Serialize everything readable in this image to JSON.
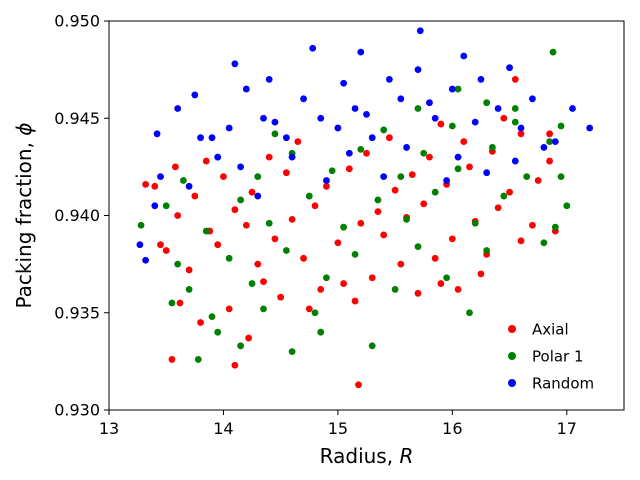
{
  "chart_data": {
    "type": "scatter",
    "title": "",
    "xlabel": "Radius, ",
    "xlabel_symbol": "R",
    "ylabel": "Packing fraction, ",
    "ylabel_symbol": "ϕ",
    "xlim": [
      13.0,
      17.5
    ],
    "ylim": [
      0.93,
      0.95
    ],
    "xticks": [
      13,
      14,
      15,
      16,
      17
    ],
    "xtick_labels": [
      "13",
      "14",
      "15",
      "16",
      "17"
    ],
    "yticks": [
      0.93,
      0.935,
      0.94,
      0.945,
      0.95
    ],
    "ytick_labels": [
      "0.930",
      "0.935",
      "0.940",
      "0.945",
      "0.950"
    ],
    "grid": false,
    "legend_position": "lower-right",
    "series": [
      {
        "name": "Axial",
        "color": "#ff0000",
        "points": [
          [
            15.18,
            0.9313
          ],
          [
            14.1,
            0.9323
          ],
          [
            13.55,
            0.9326
          ],
          [
            14.22,
            0.9337
          ],
          [
            13.8,
            0.9345
          ],
          [
            14.05,
            0.9352
          ],
          [
            13.62,
            0.9355
          ],
          [
            14.5,
            0.9358
          ],
          [
            14.85,
            0.9362
          ],
          [
            15.05,
            0.9365
          ],
          [
            15.3,
            0.9368
          ],
          [
            15.9,
            0.9365
          ],
          [
            16.05,
            0.9362
          ],
          [
            13.7,
            0.9372
          ],
          [
            14.3,
            0.9375
          ],
          [
            14.7,
            0.9378
          ],
          [
            15.55,
            0.9375
          ],
          [
            15.85,
            0.9378
          ],
          [
            16.3,
            0.938
          ],
          [
            13.5,
            0.9382
          ],
          [
            13.95,
            0.9385
          ],
          [
            14.45,
            0.9388
          ],
          [
            15.0,
            0.9386
          ],
          [
            15.4,
            0.939
          ],
          [
            16.0,
            0.9388
          ],
          [
            16.6,
            0.9387
          ],
          [
            13.45,
            0.9385
          ],
          [
            13.88,
            0.9392
          ],
          [
            14.2,
            0.9395
          ],
          [
            14.6,
            0.9398
          ],
          [
            15.2,
            0.9396
          ],
          [
            15.6,
            0.9399
          ],
          [
            16.2,
            0.9397
          ],
          [
            16.7,
            0.9395
          ],
          [
            13.6,
            0.94
          ],
          [
            14.1,
            0.9403
          ],
          [
            14.8,
            0.9405
          ],
          [
            15.35,
            0.9402
          ],
          [
            15.75,
            0.9406
          ],
          [
            16.4,
            0.9404
          ],
          [
            16.9,
            0.9392
          ],
          [
            13.75,
            0.941
          ],
          [
            14.25,
            0.9412
          ],
          [
            14.9,
            0.9415
          ],
          [
            15.5,
            0.9413
          ],
          [
            15.95,
            0.9416
          ],
          [
            16.5,
            0.9412
          ],
          [
            13.4,
            0.9415
          ],
          [
            14.0,
            0.942
          ],
          [
            14.55,
            0.9422
          ],
          [
            15.1,
            0.9424
          ],
          [
            15.65,
            0.9421
          ],
          [
            16.15,
            0.9425
          ],
          [
            16.75,
            0.9418
          ],
          [
            13.85,
            0.9428
          ],
          [
            14.4,
            0.943
          ],
          [
            15.25,
            0.9432
          ],
          [
            15.8,
            0.943
          ],
          [
            16.35,
            0.9433
          ],
          [
            16.85,
            0.9428
          ],
          [
            14.65,
            0.9438
          ],
          [
            15.45,
            0.944
          ],
          [
            16.1,
            0.9438
          ],
          [
            16.6,
            0.9442
          ],
          [
            15.0,
            0.9445
          ],
          [
            15.9,
            0.9447
          ],
          [
            16.45,
            0.945
          ],
          [
            16.85,
            0.9442
          ],
          [
            16.55,
            0.947
          ],
          [
            13.58,
            0.9425
          ],
          [
            13.32,
            0.9416
          ],
          [
            14.75,
            0.9352
          ],
          [
            15.15,
            0.9356
          ],
          [
            15.7,
            0.936
          ],
          [
            16.25,
            0.937
          ],
          [
            14.35,
            0.9366
          ]
        ]
      },
      {
        "name": "Polar 1",
        "color": "#008000",
        "points": [
          [
            13.78,
            0.9326
          ],
          [
            14.15,
            0.9333
          ],
          [
            15.3,
            0.9333
          ],
          [
            14.6,
            0.933
          ],
          [
            13.55,
            0.9355
          ],
          [
            13.9,
            0.9348
          ],
          [
            14.35,
            0.9352
          ],
          [
            14.8,
            0.935
          ],
          [
            16.15,
            0.935
          ],
          [
            13.7,
            0.9362
          ],
          [
            14.25,
            0.9365
          ],
          [
            14.9,
            0.9368
          ],
          [
            15.5,
            0.9362
          ],
          [
            15.95,
            0.9368
          ],
          [
            13.6,
            0.9375
          ],
          [
            14.05,
            0.9378
          ],
          [
            14.55,
            0.9382
          ],
          [
            15.15,
            0.938
          ],
          [
            15.7,
            0.9384
          ],
          [
            16.3,
            0.9382
          ],
          [
            16.8,
            0.9386
          ],
          [
            13.28,
            0.9395
          ],
          [
            13.85,
            0.9392
          ],
          [
            14.4,
            0.9396
          ],
          [
            15.05,
            0.9394
          ],
          [
            15.6,
            0.9398
          ],
          [
            16.2,
            0.9396
          ],
          [
            16.9,
            0.9394
          ],
          [
            13.5,
            0.9405
          ],
          [
            14.15,
            0.9408
          ],
          [
            14.75,
            0.941
          ],
          [
            15.35,
            0.9408
          ],
          [
            15.85,
            0.9412
          ],
          [
            16.45,
            0.941
          ],
          [
            17.0,
            0.9405
          ],
          [
            13.65,
            0.9418
          ],
          [
            14.3,
            0.942
          ],
          [
            14.95,
            0.9423
          ],
          [
            15.55,
            0.942
          ],
          [
            16.05,
            0.9424
          ],
          [
            16.65,
            0.942
          ],
          [
            16.95,
            0.942
          ],
          [
            13.95,
            0.943
          ],
          [
            14.6,
            0.9432
          ],
          [
            15.2,
            0.9434
          ],
          [
            15.75,
            0.9432
          ],
          [
            16.35,
            0.9435
          ],
          [
            16.85,
            0.9438
          ],
          [
            14.45,
            0.9442
          ],
          [
            15.4,
            0.9444
          ],
          [
            16.0,
            0.9446
          ],
          [
            16.55,
            0.9448
          ],
          [
            16.95,
            0.9446
          ],
          [
            15.7,
            0.9455
          ],
          [
            16.3,
            0.9458
          ],
          [
            16.05,
            0.9465
          ],
          [
            16.88,
            0.9484
          ],
          [
            16.55,
            0.9455
          ],
          [
            13.95,
            0.934
          ],
          [
            14.85,
            0.934
          ]
        ]
      },
      {
        "name": "Random",
        "color": "#0000ff",
        "points": [
          [
            13.27,
            0.9385
          ],
          [
            13.32,
            0.9377
          ],
          [
            13.4,
            0.9405
          ],
          [
            13.45,
            0.942
          ],
          [
            13.42,
            0.9442
          ],
          [
            13.6,
            0.9455
          ],
          [
            13.75,
            0.9462
          ],
          [
            13.8,
            0.944
          ],
          [
            13.95,
            0.943
          ],
          [
            14.05,
            0.9445
          ],
          [
            14.1,
            0.9478
          ],
          [
            14.2,
            0.9465
          ],
          [
            14.35,
            0.945
          ],
          [
            14.4,
            0.947
          ],
          [
            14.55,
            0.944
          ],
          [
            14.7,
            0.946
          ],
          [
            14.78,
            0.9486
          ],
          [
            14.85,
            0.945
          ],
          [
            15.0,
            0.9445
          ],
          [
            15.05,
            0.9468
          ],
          [
            15.2,
            0.9484
          ],
          [
            15.15,
            0.9455
          ],
          [
            15.3,
            0.944
          ],
          [
            15.45,
            0.947
          ],
          [
            15.55,
            0.946
          ],
          [
            15.7,
            0.9475
          ],
          [
            15.72,
            0.9495
          ],
          [
            15.85,
            0.945
          ],
          [
            16.0,
            0.9465
          ],
          [
            16.1,
            0.9482
          ],
          [
            16.25,
            0.947
          ],
          [
            16.4,
            0.9455
          ],
          [
            16.5,
            0.9476
          ],
          [
            16.6,
            0.9445
          ],
          [
            16.7,
            0.946
          ],
          [
            16.9,
            0.9438
          ],
          [
            17.05,
            0.9455
          ],
          [
            17.2,
            0.9445
          ],
          [
            13.7,
            0.9415
          ],
          [
            14.15,
            0.9425
          ],
          [
            14.6,
            0.943
          ],
          [
            15.1,
            0.9432
          ],
          [
            15.6,
            0.9435
          ],
          [
            16.05,
            0.943
          ],
          [
            16.55,
            0.9428
          ],
          [
            14.3,
            0.941
          ],
          [
            14.9,
            0.9418
          ],
          [
            15.4,
            0.942
          ],
          [
            15.95,
            0.9418
          ],
          [
            16.3,
            0.9422
          ],
          [
            13.9,
            0.944
          ],
          [
            14.45,
            0.9448
          ],
          [
            15.25,
            0.9452
          ],
          [
            15.8,
            0.9458
          ],
          [
            16.2,
            0.9448
          ],
          [
            16.8,
            0.9435
          ]
        ]
      }
    ]
  }
}
